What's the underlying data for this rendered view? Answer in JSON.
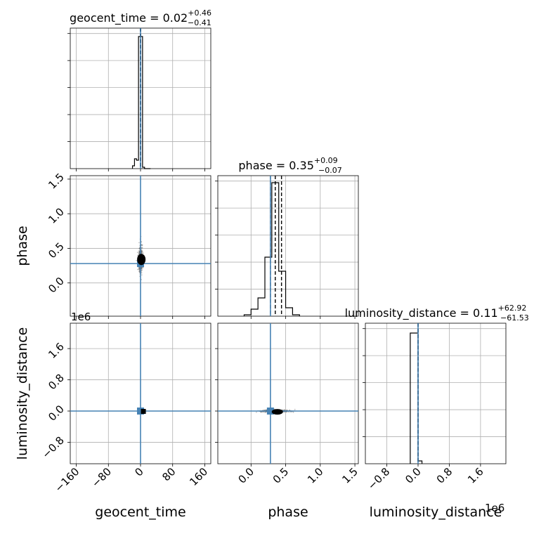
{
  "chart_data": {
    "type": "scatter",
    "figure": "corner-plot",
    "colors": {
      "truth": "#4682b4",
      "hist": "#000000",
      "grid": "#b0b0b0",
      "samples": "#555555"
    },
    "parameters": [
      {
        "name": "geocent_time",
        "axis_label": "geocent_time",
        "title_prefix": "geocent_time = ",
        "median": "0.02",
        "plus": "+0.46",
        "minus": "−0.41",
        "range": [
          -175,
          175
        ],
        "ticks": [
          -160,
          -80,
          0,
          80,
          160
        ],
        "tick_labels": [
          "−160",
          "−80",
          "0",
          "80",
          "160"
        ],
        "truth": 0,
        "quantiles": [
          -0.39,
          0.02,
          0.48
        ],
        "hist_bin_edges": [
          -20,
          -15,
          -10,
          -5,
          0,
          5,
          10,
          15,
          20,
          25
        ],
        "hist_counts": [
          0.02,
          0.07,
          0.06,
          0.94,
          0.94,
          0.01,
          0,
          0,
          0
        ],
        "offset_text": ""
      },
      {
        "name": "phase",
        "axis_label": "phase",
        "title_prefix": "phase = ",
        "median": "0.35",
        "plus": "+0.09",
        "minus": "−0.07",
        "range": [
          -0.48,
          1.55
        ],
        "ticks": [
          0.0,
          0.5,
          1.0,
          1.5
        ],
        "tick_labels": [
          "0.0",
          "0.5",
          "1.0",
          "1.5"
        ],
        "truth": 0.28,
        "quantiles": [
          0.28,
          0.35,
          0.44
        ],
        "hist_bin_edges": [
          -0.1,
          0.0,
          0.1,
          0.2,
          0.3,
          0.4,
          0.5,
          0.6,
          0.7
        ],
        "hist_counts": [
          0.01,
          0.05,
          0.13,
          0.42,
          0.95,
          0.32,
          0.06,
          0.01
        ],
        "offset_text": ""
      },
      {
        "name": "luminosity_distance",
        "axis_label": "luminosity_distance",
        "title_prefix": "luminosity_distance = ",
        "median": "0.11",
        "plus": "+62.92",
        "minus": "−61.53",
        "range": [
          -1.35,
          2.25
        ],
        "ticks": [
          -0.8,
          0.0,
          0.8,
          1.6
        ],
        "tick_labels": [
          "−0.8",
          "0.0",
          "0.8",
          "1.6"
        ],
        "truth": 0,
        "quantiles": [
          -0.0001,
          0.0,
          0.0001
        ],
        "hist_bin_edges": [
          -0.2,
          0.0,
          0.1
        ],
        "hist_counts": [
          0.93,
          0.02
        ],
        "offset_text": "1e6"
      }
    ]
  }
}
